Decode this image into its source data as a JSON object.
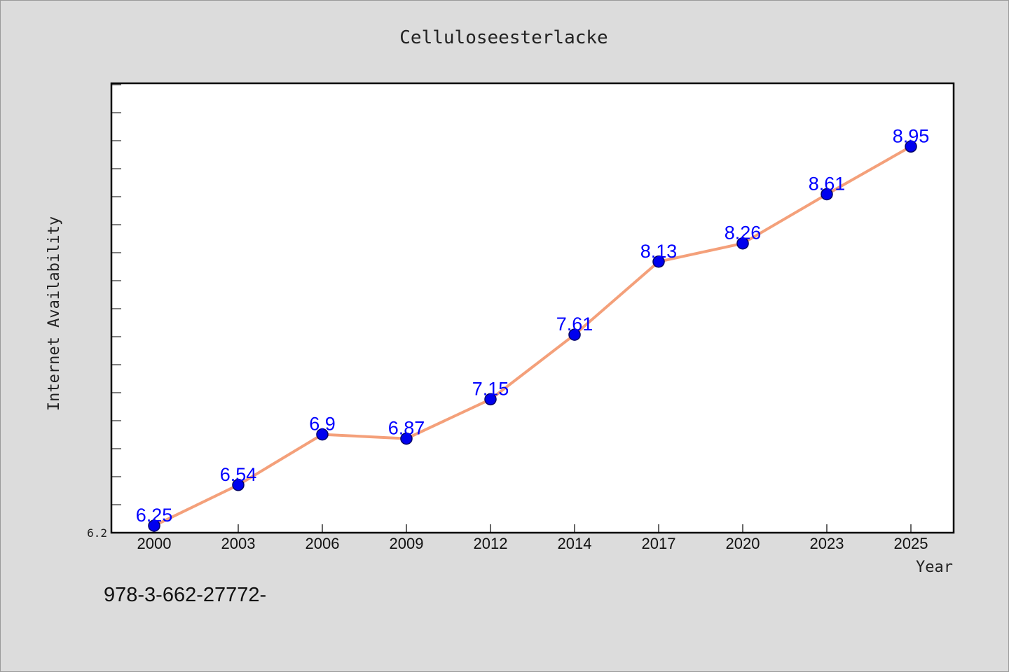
{
  "footnote": "978-3-662-27772-",
  "chart_data": {
    "type": "line",
    "title": "Celluloseesterlacke",
    "xlabel": "Year",
    "ylabel": "Internet Availability",
    "categories": [
      "2000",
      "2003",
      "2006",
      "2009",
      "2012",
      "2014",
      "2017",
      "2020",
      "2023",
      "2025"
    ],
    "values": [
      6.25,
      6.54,
      6.9,
      6.87,
      7.15,
      7.61,
      8.13,
      8.26,
      8.61,
      8.95
    ],
    "data_labels": [
      "6.25",
      "6.54",
      "6.9",
      "6.87",
      "7.15",
      "7.61",
      "8.13",
      "8.26",
      "8.61",
      "8.95"
    ],
    "y_tick_labels": [
      "6.2"
    ],
    "ylim": [
      6.2,
      9.4
    ],
    "grid": false,
    "legend": "none",
    "colors": {
      "line": "#f4a07a",
      "marker": "#0000ee",
      "marker_edge": "#000066",
      "data_label": "#0000ff",
      "plot_bg": "#ffffff",
      "figure_bg": "#dcdcdc"
    }
  }
}
